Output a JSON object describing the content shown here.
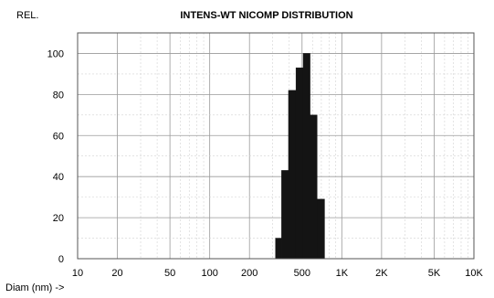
{
  "chart_data": {
    "type": "bar",
    "title": "INTENS-WT NICOMP DISTRIBUTION",
    "ylabel": "REL.",
    "xlabel": "Diam (nm) ->",
    "xscale": "log",
    "xlim": [
      10,
      10000
    ],
    "ylim": [
      0,
      110
    ],
    "y_ticks": [
      0,
      20,
      40,
      60,
      80,
      100
    ],
    "x_ticks": [
      {
        "value": 10,
        "label": "10"
      },
      {
        "value": 20,
        "label": "20"
      },
      {
        "value": 50,
        "label": "50"
      },
      {
        "value": 100,
        "label": "100"
      },
      {
        "value": 200,
        "label": "200"
      },
      {
        "value": 500,
        "label": "500"
      },
      {
        "value": 1000,
        "label": "1K"
      },
      {
        "value": 2000,
        "label": "2K"
      },
      {
        "value": 5000,
        "label": "5K"
      },
      {
        "value": 10000,
        "label": "10K"
      }
    ],
    "grid": true,
    "bins": [
      {
        "x0": 315,
        "x1": 350,
        "value": 10
      },
      {
        "x0": 350,
        "x1": 395,
        "value": 43
      },
      {
        "x0": 395,
        "x1": 450,
        "value": 82
      },
      {
        "x0": 450,
        "x1": 510,
        "value": 93
      },
      {
        "x0": 510,
        "x1": 575,
        "value": 100
      },
      {
        "x0": 575,
        "x1": 650,
        "value": 70
      },
      {
        "x0": 650,
        "x1": 740,
        "value": 29
      }
    ]
  }
}
